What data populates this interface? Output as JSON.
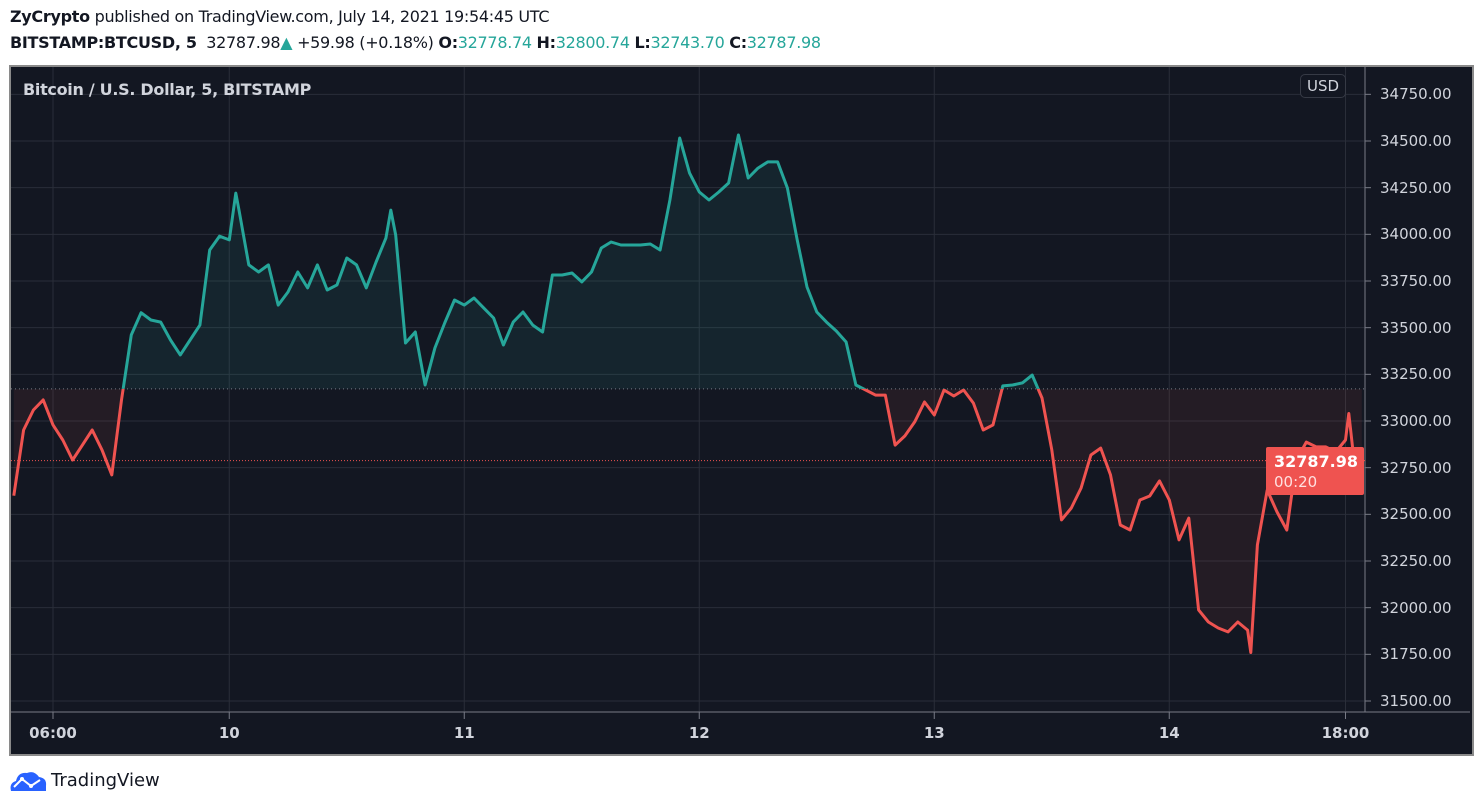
{
  "header": {
    "author": "ZyCrypto",
    "published_text": "published on TradingView.com, July 14, 2021 19:54:45 UTC",
    "symbol": "BITSTAMP:BTCUSD, 5",
    "last": "32787.98",
    "change": "+59.98 (+0.18%)",
    "o_label": "O:",
    "o": "32778.74",
    "h_label": "H:",
    "h": "32800.74",
    "l_label": "L:",
    "l": "32743.70",
    "c_label": "C:",
    "c": "32787.98"
  },
  "brand": {
    "name": "TradingView",
    "accent": "#2962ff"
  },
  "currency_button": "USD",
  "chart_data": {
    "type": "line",
    "style": "baseline",
    "title": "Bitcoin / U.S. Dollar, 5, BITSTAMP",
    "baseline": 33172,
    "colors": {
      "up": "#26a69a",
      "down": "#ef5350",
      "background": "#131722",
      "grid": "#2a2e39"
    },
    "ylim": [
      31450,
      34800
    ],
    "y_ticks": [
      "34750.00",
      "34500.00",
      "34250.00",
      "34000.00",
      "33750.00",
      "33500.00",
      "33250.00",
      "33000.00",
      "32750.00",
      "32500.00",
      "32250.00",
      "32000.00",
      "31750.00",
      "31500.00"
    ],
    "x_ticks": [
      {
        "label": "06:00",
        "t": "07-09 06:00"
      },
      {
        "label": "10",
        "t": "07-10 00:00"
      },
      {
        "label": "11",
        "t": "07-11 00:00"
      },
      {
        "label": "12",
        "t": "07-12 00:00"
      },
      {
        "label": "13",
        "t": "07-13 00:00"
      },
      {
        "label": "14",
        "t": "07-14 00:00"
      },
      {
        "label": "18:00",
        "t": "07-14 18:00"
      }
    ],
    "last_price": "32787.98",
    "countdown": "00:20",
    "grid": true,
    "points": [
      [
        "07-09 02:00",
        32600
      ],
      [
        "07-09 03:00",
        32952
      ],
      [
        "07-09 04:00",
        33059
      ],
      [
        "07-09 05:00",
        33113
      ],
      [
        "07-09 06:00",
        32979
      ],
      [
        "07-09 07:00",
        32898
      ],
      [
        "07-09 08:00",
        32791
      ],
      [
        "07-09 09:00",
        32871
      ],
      [
        "07-09 10:00",
        32952
      ],
      [
        "07-09 11:00",
        32845
      ],
      [
        "07-09 12:00",
        32711
      ],
      [
        "07-09 13:00",
        33113
      ],
      [
        "07-09 14:00",
        33461
      ],
      [
        "07-09 15:00",
        33580
      ],
      [
        "07-09 16:00",
        33541
      ],
      [
        "07-09 17:00",
        33530
      ],
      [
        "07-09 18:00",
        33434
      ],
      [
        "07-09 19:00",
        33354
      ],
      [
        "07-09 20:00",
        33434
      ],
      [
        "07-09 21:00",
        33514
      ],
      [
        "07-09 22:00",
        33916
      ],
      [
        "07-09 23:00",
        33990
      ],
      [
        "07-10 00:00",
        33970
      ],
      [
        "07-10 00:40",
        34221
      ],
      [
        "07-10 01:00",
        34130
      ],
      [
        "07-10 02:00",
        33836
      ],
      [
        "07-10 03:00",
        33798
      ],
      [
        "07-10 04:00",
        33836
      ],
      [
        "07-10 05:00",
        33621
      ],
      [
        "07-10 06:00",
        33691
      ],
      [
        "07-10 07:00",
        33798
      ],
      [
        "07-10 08:00",
        33713
      ],
      [
        "07-10 09:00",
        33836
      ],
      [
        "07-10 10:00",
        33702
      ],
      [
        "07-10 11:00",
        33729
      ],
      [
        "07-10 12:00",
        33873
      ],
      [
        "07-10 13:00",
        33836
      ],
      [
        "07-10 14:00",
        33713
      ],
      [
        "07-10 15:00",
        33852
      ],
      [
        "07-10 16:00",
        33980
      ],
      [
        "07-10 16:30",
        34130
      ],
      [
        "07-10 17:00",
        33996
      ],
      [
        "07-10 18:00",
        33418
      ],
      [
        "07-10 19:00",
        33477
      ],
      [
        "07-10 20:00",
        33193
      ],
      [
        "07-10 21:00",
        33391
      ],
      [
        "07-10 22:00",
        33525
      ],
      [
        "07-10 23:00",
        33648
      ],
      [
        "07-11 00:00",
        33621
      ],
      [
        "07-11 01:00",
        33659
      ],
      [
        "07-11 02:00",
        33605
      ],
      [
        "07-11 03:00",
        33552
      ],
      [
        "07-11 04:00",
        33407
      ],
      [
        "07-11 05:00",
        33530
      ],
      [
        "07-11 06:00",
        33584
      ],
      [
        "07-11 07:00",
        33514
      ],
      [
        "07-11 08:00",
        33477
      ],
      [
        "07-11 09:00",
        33782
      ],
      [
        "07-11 10:00",
        33782
      ],
      [
        "07-11 11:00",
        33793
      ],
      [
        "07-11 12:00",
        33745
      ],
      [
        "07-11 13:00",
        33798
      ],
      [
        "07-11 14:00",
        33927
      ],
      [
        "07-11 15:00",
        33959
      ],
      [
        "07-11 16:00",
        33943
      ],
      [
        "07-11 17:00",
        33943
      ],
      [
        "07-11 18:00",
        33943
      ],
      [
        "07-11 19:00",
        33948
      ],
      [
        "07-11 20:00",
        33916
      ],
      [
        "07-11 21:00",
        34184
      ],
      [
        "07-11 22:00",
        34516
      ],
      [
        "07-11 23:00",
        34329
      ],
      [
        "07-12 00:00",
        34227
      ],
      [
        "07-12 01:00",
        34184
      ],
      [
        "07-12 02:00",
        34227
      ],
      [
        "07-12 03:00",
        34275
      ],
      [
        "07-12 04:00",
        34532
      ],
      [
        "07-12 05:00",
        34302
      ],
      [
        "07-12 06:00",
        34355
      ],
      [
        "07-12 07:00",
        34388
      ],
      [
        "07-12 08:00",
        34388
      ],
      [
        "07-12 09:00",
        34248
      ],
      [
        "07-12 10:00",
        33970
      ],
      [
        "07-12 11:00",
        33718
      ],
      [
        "07-12 12:00",
        33584
      ],
      [
        "07-12 13:00",
        33530
      ],
      [
        "07-12 14:00",
        33482
      ],
      [
        "07-12 15:00",
        33423
      ],
      [
        "07-12 16:00",
        33193
      ],
      [
        "07-12 17:00",
        33166
      ],
      [
        "07-12 18:00",
        33139
      ],
      [
        "07-12 19:00",
        33139
      ],
      [
        "07-12 20:00",
        32871
      ],
      [
        "07-12 21:00",
        32920
      ],
      [
        "07-12 22:00",
        32995
      ],
      [
        "07-12 23:00",
        33102
      ],
      [
        "07-13 00:00",
        33032
      ],
      [
        "07-13 01:00",
        33166
      ],
      [
        "07-13 02:00",
        33134
      ],
      [
        "07-13 03:00",
        33166
      ],
      [
        "07-13 04:00",
        33096
      ],
      [
        "07-13 05:00",
        32952
      ],
      [
        "07-13 06:00",
        32979
      ],
      [
        "07-13 07:00",
        33188
      ],
      [
        "07-13 08:00",
        33193
      ],
      [
        "07-13 09:00",
        33204
      ],
      [
        "07-13 10:00",
        33246
      ],
      [
        "07-13 11:00",
        33123
      ],
      [
        "07-13 12:00",
        32845
      ],
      [
        "07-13 13:00",
        32470
      ],
      [
        "07-13 14:00",
        32534
      ],
      [
        "07-13 15:00",
        32641
      ],
      [
        "07-13 16:00",
        32818
      ],
      [
        "07-13 17:00",
        32855
      ],
      [
        "07-13 18:00",
        32711
      ],
      [
        "07-13 19:00",
        32443
      ],
      [
        "07-13 20:00",
        32416
      ],
      [
        "07-13 21:00",
        32577
      ],
      [
        "07-13 22:00",
        32598
      ],
      [
        "07-13 23:00",
        32679
      ],
      [
        "07-14 00:00",
        32577
      ],
      [
        "07-14 01:00",
        32363
      ],
      [
        "07-14 02:00",
        32480
      ],
      [
        "07-14 03:00",
        31988
      ],
      [
        "07-14 04:00",
        31923
      ],
      [
        "07-14 05:00",
        31891
      ],
      [
        "07-14 06:00",
        31870
      ],
      [
        "07-14 07:00",
        31923
      ],
      [
        "07-14 08:00",
        31880
      ],
      [
        "07-14 08:20",
        31760
      ],
      [
        "07-14 09:00",
        32336
      ],
      [
        "07-14 10:00",
        32630
      ],
      [
        "07-14 11:00",
        32513
      ],
      [
        "07-14 12:00",
        32416
      ],
      [
        "07-14 13:00",
        32791
      ],
      [
        "07-14 14:00",
        32887
      ],
      [
        "07-14 15:00",
        32861
      ],
      [
        "07-14 16:00",
        32861
      ],
      [
        "07-14 17:00",
        32834
      ],
      [
        "07-14 18:00",
        32898
      ],
      [
        "07-14 18:20",
        33040
      ],
      [
        "07-14 19:00",
        32727
      ],
      [
        "07-14 19:40",
        32788
      ]
    ]
  }
}
